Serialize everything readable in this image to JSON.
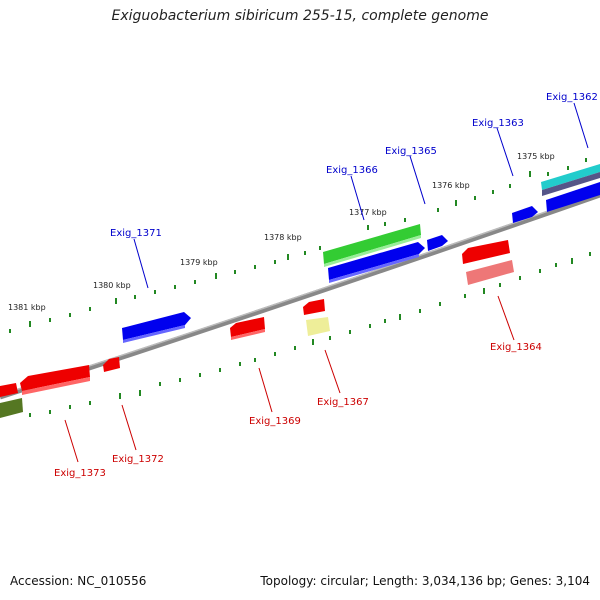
{
  "title": "Exiguobacterium sibiricum 255-15, complete genome",
  "footer": {
    "accession": "Accession: NC_010556",
    "summary": "Topology: circular; Length: 3,034,136 bp; Genes: 3,104"
  },
  "colors": {
    "backbone": "#888888",
    "tick": "#228822",
    "forward_label": "#0000cc",
    "reverse_label": "#cc0000",
    "blue": "#0000ee",
    "red": "#ee0000",
    "green": "#33cc33",
    "olive": "#557722",
    "pink": "#ee7777",
    "yellow": "#eeee99",
    "cyan": "#22cccc",
    "purple": "#555588"
  },
  "tick_labels": [
    "1381 kbp",
    "1380 kbp",
    "1379 kbp",
    "1378 kbp",
    "1377 kbp",
    "1376 kbp",
    "1375 kbp"
  ],
  "gene_labels_top": [
    "Exig_1362",
    "Exig_1363",
    "Exig_1365",
    "Exig_1366",
    "Exig_1371"
  ],
  "gene_labels_bottom": [
    "Exig_1364",
    "Exig_1367",
    "Exig_1369",
    "Exig_1372",
    "Exig_1373"
  ]
}
